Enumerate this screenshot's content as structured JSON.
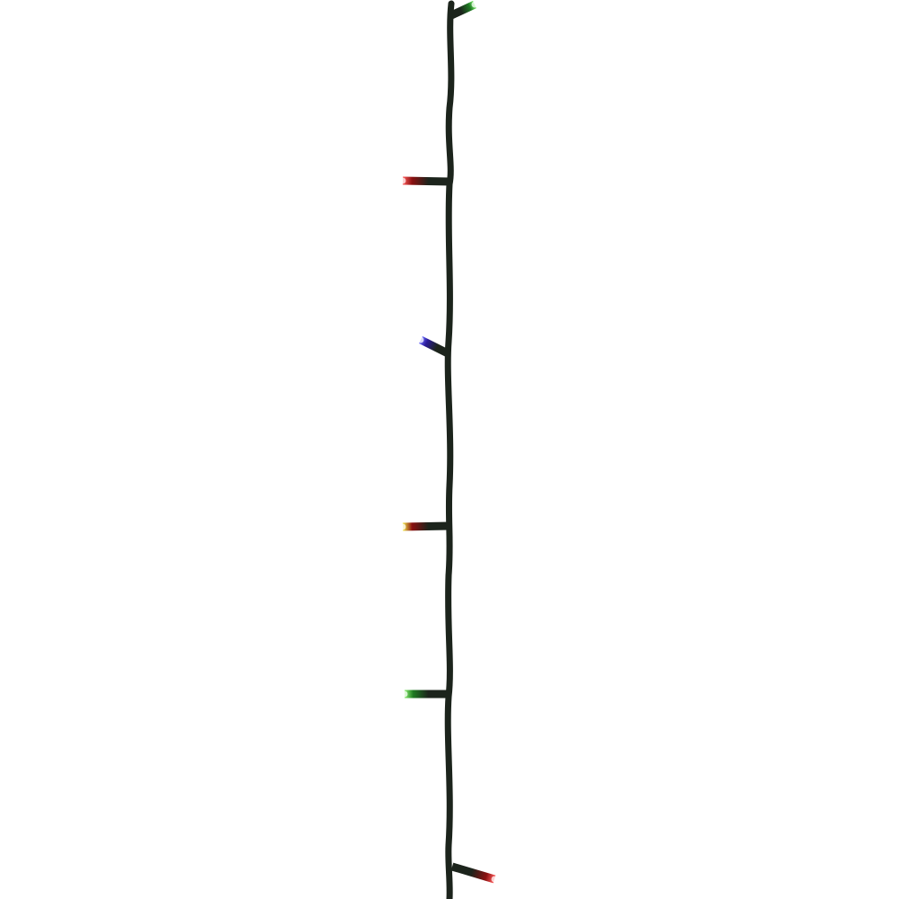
{
  "background": "#ffffff",
  "wire_color": "#1c241c",
  "bulbs": [
    {
      "color": "green",
      "tip": "#7be86a",
      "base": "#1e7a22"
    },
    {
      "color": "red",
      "tip": "#ff5a5a",
      "base": "#8a1010"
    },
    {
      "color": "blue",
      "tip": "#6a6cff",
      "base": "#2a1a9a"
    },
    {
      "color": "yellow",
      "tip": "#f2ec4a",
      "base": "#8a1010"
    },
    {
      "color": "green",
      "tip": "#8cf070",
      "base": "#1e7a22"
    },
    {
      "color": "red",
      "tip": "#ff5a5a",
      "base": "#8a1010"
    }
  ]
}
